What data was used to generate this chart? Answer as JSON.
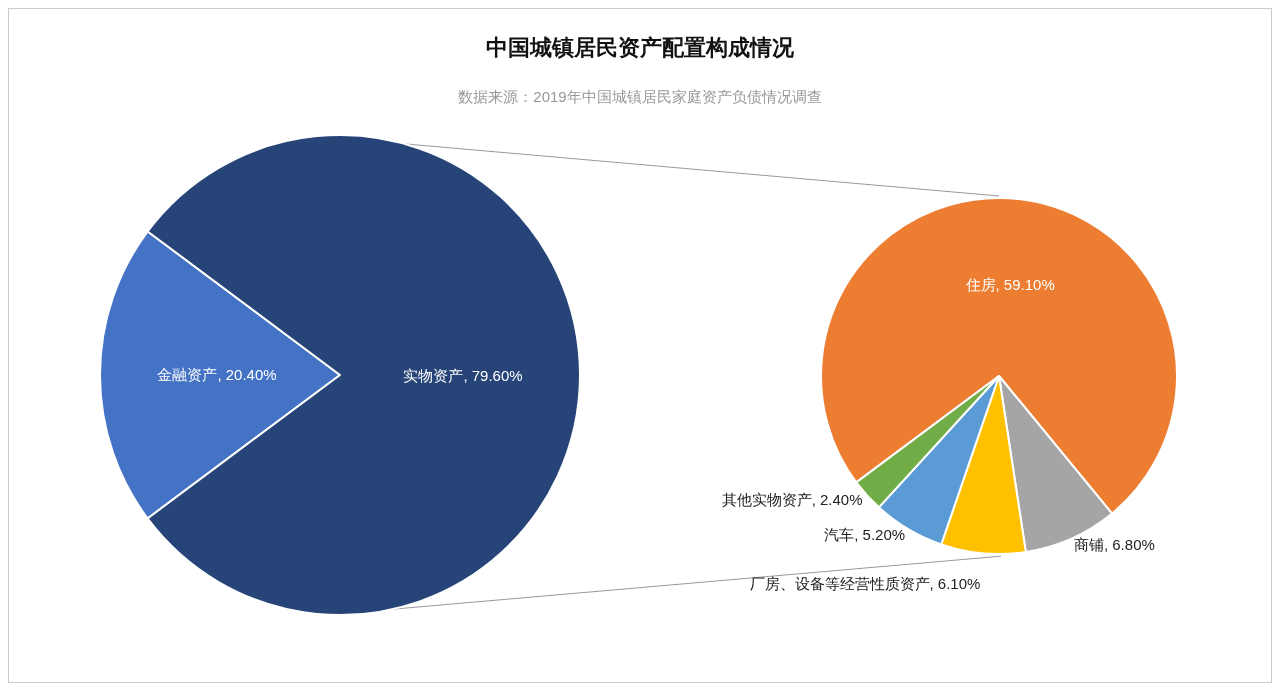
{
  "chart_data": [
    {
      "type": "pie",
      "title": "中国城镇居民资产配置构成情况",
      "subtitle": "数据来源：2019年中国城镇居民家庭资产负债情况调查",
      "categories": [
        "金融资产",
        "实物资产"
      ],
      "values": [
        20.4,
        79.6
      ],
      "colors": [
        "#4472c4",
        "#264478"
      ],
      "value_labels": [
        "20.40%",
        "79.60%"
      ]
    },
    {
      "type": "pie",
      "categories": [
        "住房",
        "商铺",
        "厂房、设备等经营性质资产",
        "汽车",
        "其他实物资产"
      ],
      "values": [
        59.1,
        6.8,
        6.1,
        5.2,
        2.4
      ],
      "colors": [
        "#ed7d31",
        "#a5a5a5",
        "#ffc000",
        "#5b9bd5",
        "#70ad47"
      ],
      "value_labels": [
        "59.10%",
        "6.80%",
        "6.10%",
        "5.20%",
        "2.40%"
      ]
    }
  ]
}
